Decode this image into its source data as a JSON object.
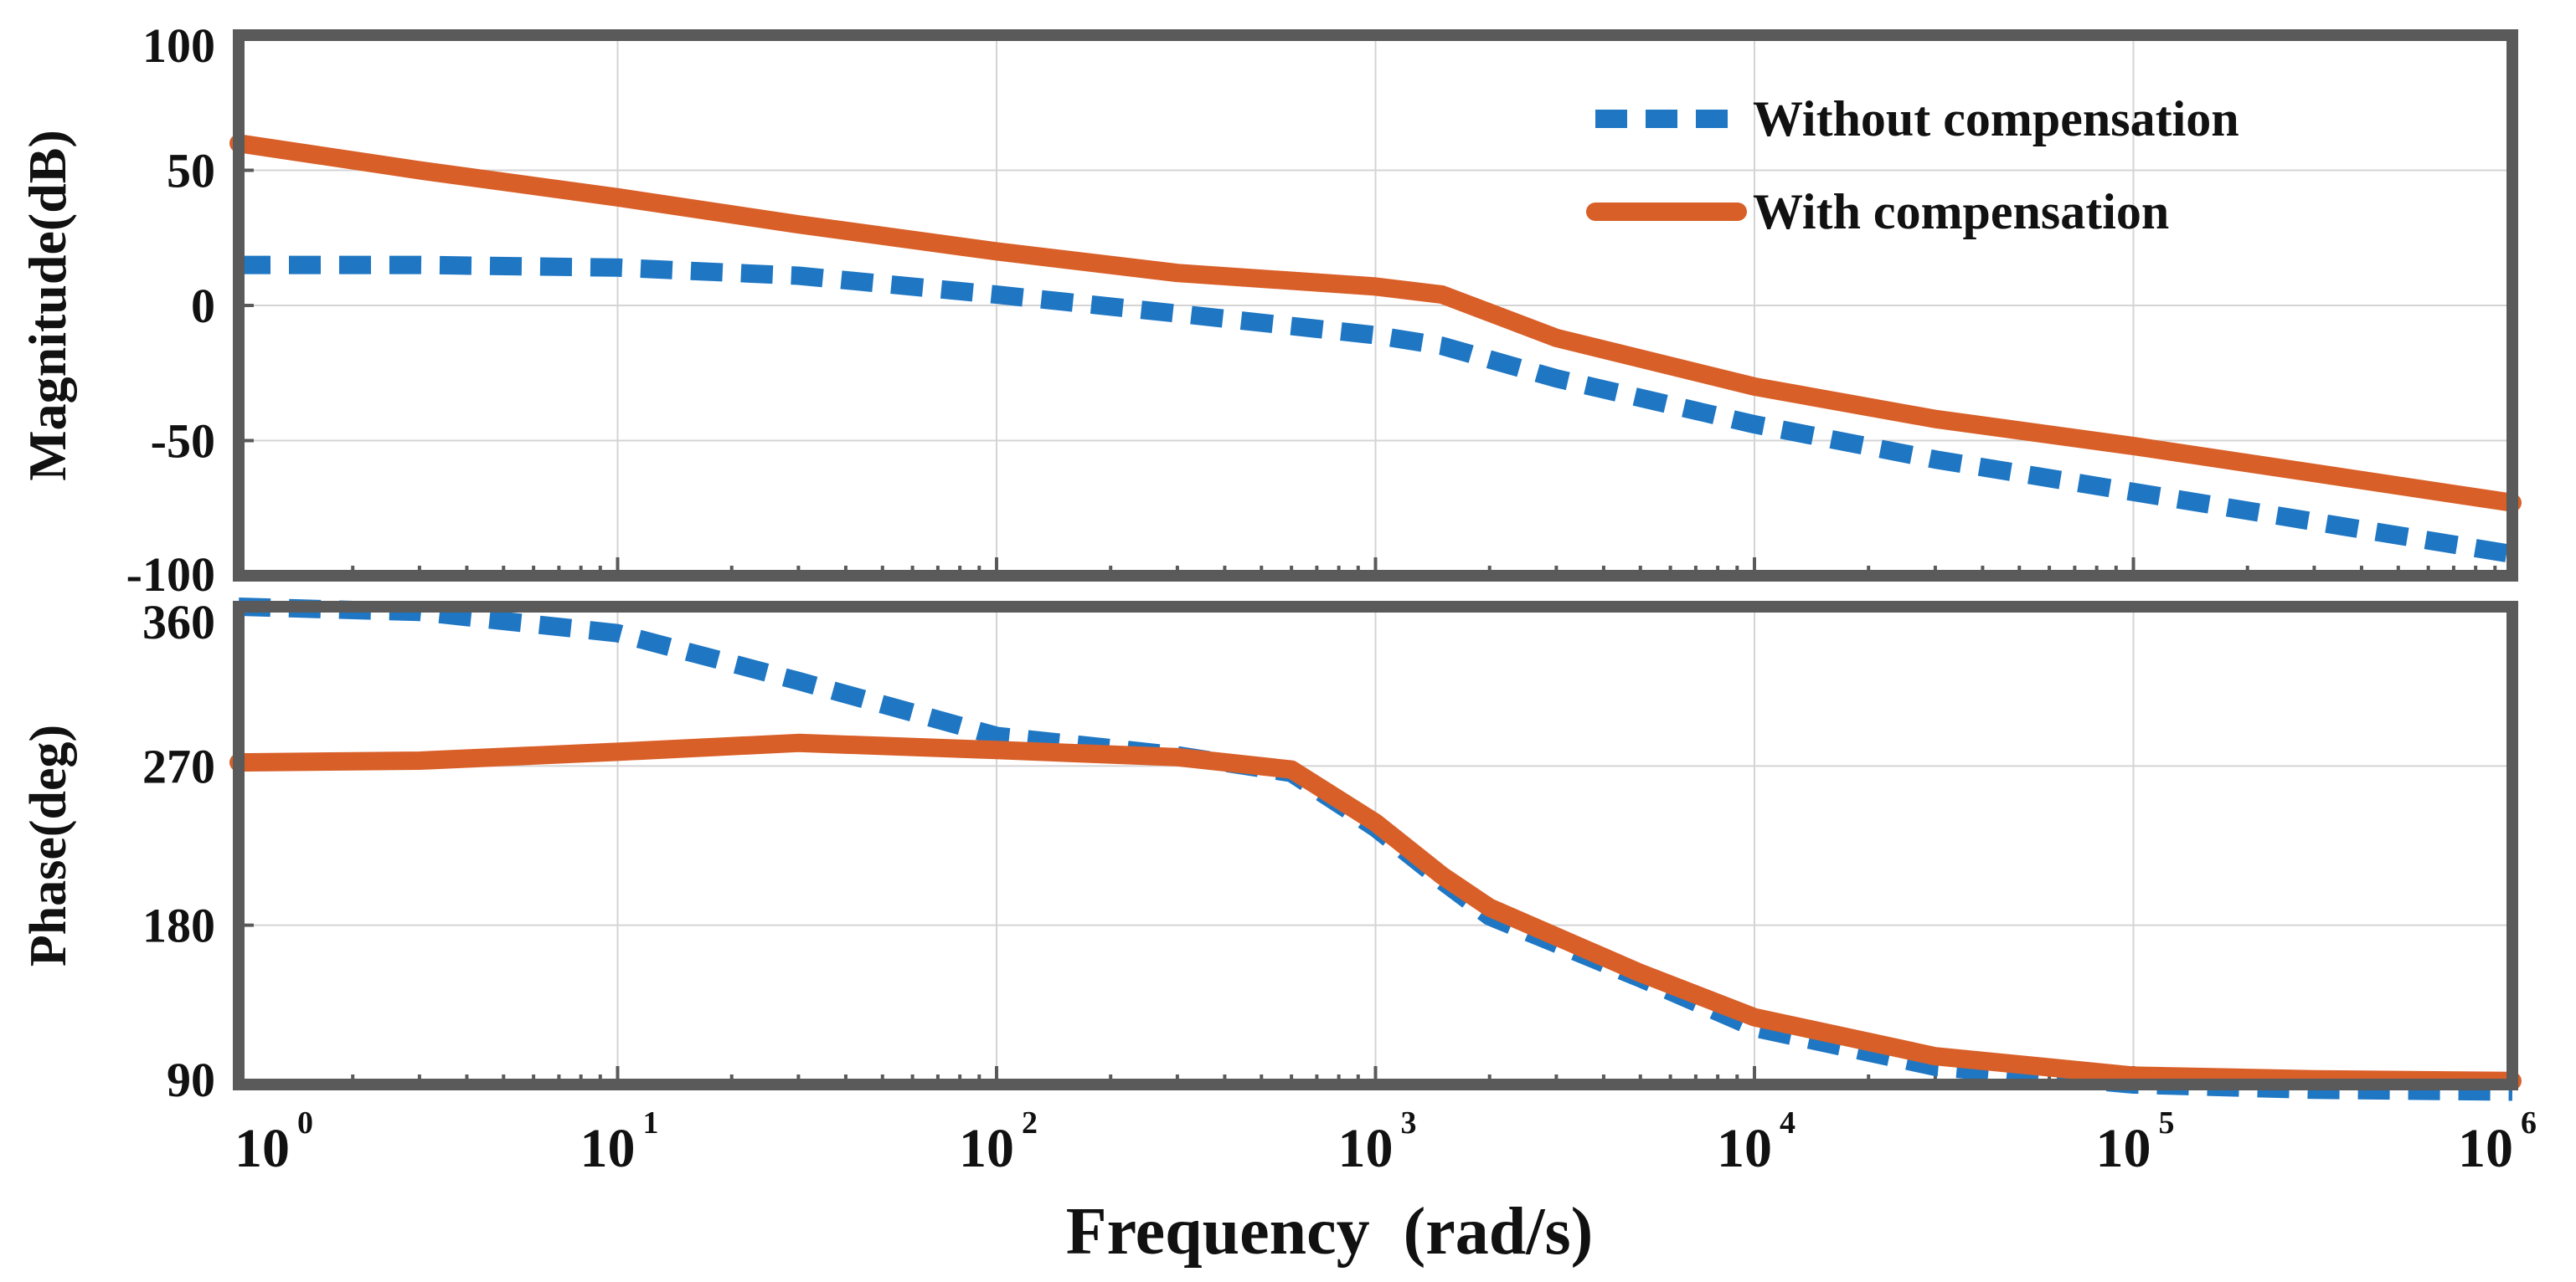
{
  "chart_data": {
    "type": "line",
    "xlabel": "Frequency  (rad/s)",
    "x_scale": "log",
    "xlim": [
      1,
      1000000
    ],
    "x_ticks": [
      {
        "base": "10",
        "exp": "0"
      },
      {
        "base": "10",
        "exp": "1"
      },
      {
        "base": "10",
        "exp": "2"
      },
      {
        "base": "10",
        "exp": "3"
      },
      {
        "base": "10",
        "exp": "4"
      },
      {
        "base": "10",
        "exp": "5"
      },
      {
        "base": "10",
        "exp": "6"
      }
    ],
    "legend": {
      "position": "top-right",
      "entries": [
        "Without compensation",
        "With compensation"
      ]
    },
    "colors": {
      "without": "#1f77c4",
      "with": "#d95f28",
      "frame": "#5a5a5a"
    },
    "panels": [
      {
        "name": "magnitude",
        "ylabel": "Magnitude(dB)",
        "ylim": [
          -100,
          100
        ],
        "yticks": [
          100,
          50,
          0,
          -50,
          -100
        ],
        "series": [
          {
            "name": "Without compensation",
            "style": "dashed",
            "x": [
              1,
              3,
              10,
              30,
              100,
              300,
              1000,
              1500,
              3000,
              10000,
              30000,
              100000,
              300000,
              1000000
            ],
            "y": [
              15,
              15,
              14,
              11,
              4,
              -3,
              -11,
              -15,
              -27,
              -44,
              -57,
              -69,
              -80,
              -92
            ]
          },
          {
            "name": "With compensation",
            "style": "solid",
            "x": [
              1,
              3,
              10,
              30,
              100,
              300,
              1000,
              1500,
              3000,
              10000,
              30000,
              100000,
              300000,
              1000000
            ],
            "y": [
              60,
              50,
              40,
              30,
              20,
              12,
              7,
              4,
              -12,
              -30,
              -42,
              -52,
              -62,
              -73
            ]
          }
        ]
      },
      {
        "name": "phase",
        "ylabel": "Phase(deg)",
        "ylim": [
          90,
          360
        ],
        "yticks": [
          360,
          270,
          180,
          90
        ],
        "series": [
          {
            "name": "Without compensation",
            "style": "dashed",
            "x": [
              1,
              3,
              10,
              30,
              100,
              300,
              600,
              1000,
              1500,
              2000,
              5000,
              10000,
              30000,
              100000,
              300000,
              1000000
            ],
            "y": [
              360,
              357,
              345,
              318,
              287,
              276,
              266,
              235,
              205,
              185,
              150,
              122,
              100,
              90,
              87,
              86
            ]
          },
          {
            "name": "With compensation",
            "style": "solid",
            "x": [
              1,
              3,
              10,
              30,
              100,
              300,
              600,
              1000,
              1500,
              2000,
              5000,
              10000,
              30000,
              100000,
              300000,
              1000000
            ],
            "y": [
              272,
              273,
              278,
              283,
              279,
              275,
              268,
              238,
              208,
              190,
              153,
              128,
              106,
              95,
              93,
              92
            ]
          }
        ]
      }
    ]
  }
}
